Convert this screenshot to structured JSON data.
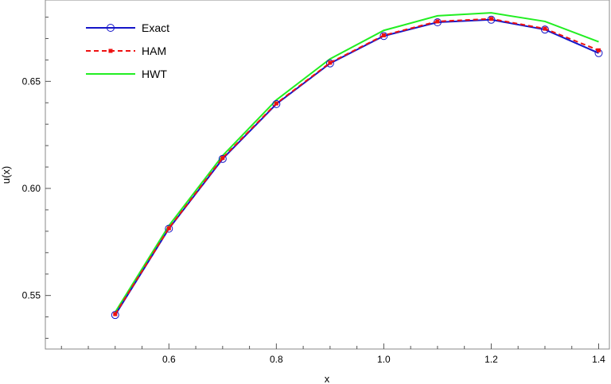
{
  "chart_data": {
    "type": "line",
    "title": "",
    "xlabel": "x",
    "ylabel": "u(x)",
    "xlim": [
      0.37,
      1.42
    ],
    "ylim": [
      0.525,
      0.688
    ],
    "grid": false,
    "legend_position": "top-left",
    "x_ticks": [
      0.6,
      0.8,
      1.0,
      1.2,
      1.4
    ],
    "x_tick_labels": [
      "0.6",
      "0.8",
      "1.0",
      "1.2",
      "1.4"
    ],
    "y_ticks": [
      0.55,
      0.6,
      0.65
    ],
    "y_tick_labels": [
      "0.55",
      "0.60",
      "0.65"
    ],
    "x": [
      0.5,
      0.6,
      0.7,
      0.8,
      0.9,
      1.0,
      1.1,
      1.2,
      1.3,
      1.4
    ],
    "series": [
      {
        "name": "Exact",
        "color": "#1515c8",
        "marker": "open-circle",
        "line": "solid",
        "values": [
          0.5409,
          0.5812,
          0.6138,
          0.6394,
          0.6584,
          0.6712,
          0.6776,
          0.6788,
          0.6742,
          0.6632
        ]
      },
      {
        "name": "HAM",
        "color": "#ee1111",
        "marker": "filled-square",
        "line": "dashed",
        "values": [
          0.5413,
          0.5814,
          0.6142,
          0.6397,
          0.6587,
          0.6715,
          0.678,
          0.6792,
          0.6746,
          0.6645
        ]
      },
      {
        "name": "HWT",
        "color": "#22ee22",
        "marker": "none",
        "line": "solid",
        "values": [
          0.5422,
          0.5826,
          0.6153,
          0.6413,
          0.6605,
          0.6738,
          0.6806,
          0.682,
          0.678,
          0.6685
        ]
      }
    ]
  }
}
